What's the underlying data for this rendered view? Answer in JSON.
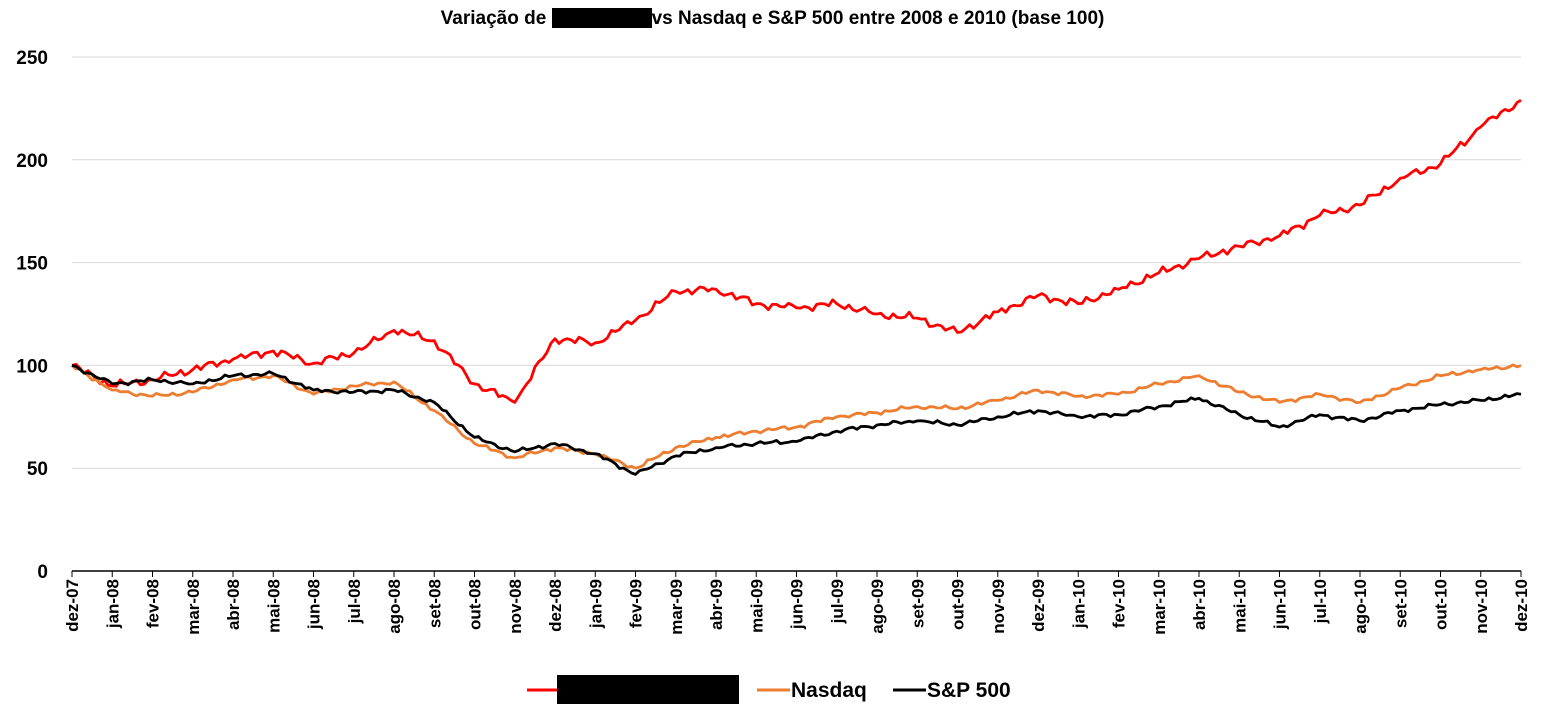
{
  "chart_data": {
    "type": "line",
    "title_parts": [
      "Variação de ",
      "vs Nasdaq e S&P 500 entre 2008 e 2010 (base 100)"
    ],
    "xlabel": "",
    "ylabel": "",
    "ylim": [
      0,
      250
    ],
    "yticks": [
      0,
      50,
      100,
      150,
      200,
      250
    ],
    "grid": "horizontal",
    "legend_position": "bottom",
    "x_categories": [
      "dez-07",
      "jan-08",
      "fev-08",
      "mar-08",
      "abr-08",
      "mai-08",
      "jun-08",
      "jul-08",
      "ago-08",
      "set-08",
      "out-08",
      "nov-08",
      "dez-08",
      "jan-09",
      "fev-09",
      "mar-09",
      "abr-09",
      "mai-09",
      "jun-09",
      "jul-09",
      "ago-09",
      "set-09",
      "out-09",
      "nov-09",
      "dez-09",
      "jan-10",
      "fev-10",
      "mar-10",
      "abr-10",
      "mai-10",
      "jun-10",
      "jul-10",
      "ago-10",
      "set-10",
      "out-10",
      "nov-10",
      "dez-10"
    ],
    "series": [
      {
        "name": "",
        "name_redacted": true,
        "color": "#ff0000",
        "values": [
          100,
          90,
          93,
          98,
          103,
          107,
          101,
          106,
          117,
          112,
          91,
          82,
          113,
          111,
          122,
          136,
          137,
          130,
          128,
          130,
          125,
          123,
          116,
          126,
          134,
          130,
          137,
          145,
          152,
          158,
          163,
          173,
          178,
          191,
          198,
          216,
          229
        ]
      },
      {
        "name": "Nasdaq",
        "color": "#ed7d31",
        "values": [
          100,
          88,
          85,
          87,
          93,
          95,
          86,
          90,
          92,
          78,
          62,
          55,
          60,
          57,
          50,
          60,
          65,
          68,
          70,
          75,
          77,
          80,
          79,
          83,
          88,
          85,
          86,
          91,
          95,
          87,
          82,
          86,
          82,
          89,
          95,
          98,
          100
        ]
      },
      {
        "name": "S&P 500",
        "color": "#000000",
        "values": [
          100,
          91,
          93,
          91,
          95,
          96,
          88,
          87,
          88,
          82,
          65,
          58,
          62,
          57,
          47,
          56,
          60,
          62,
          63,
          68,
          71,
          73,
          71,
          75,
          78,
          75,
          76,
          80,
          84,
          76,
          70,
          76,
          73,
          78,
          81,
          83,
          86
        ]
      }
    ]
  }
}
